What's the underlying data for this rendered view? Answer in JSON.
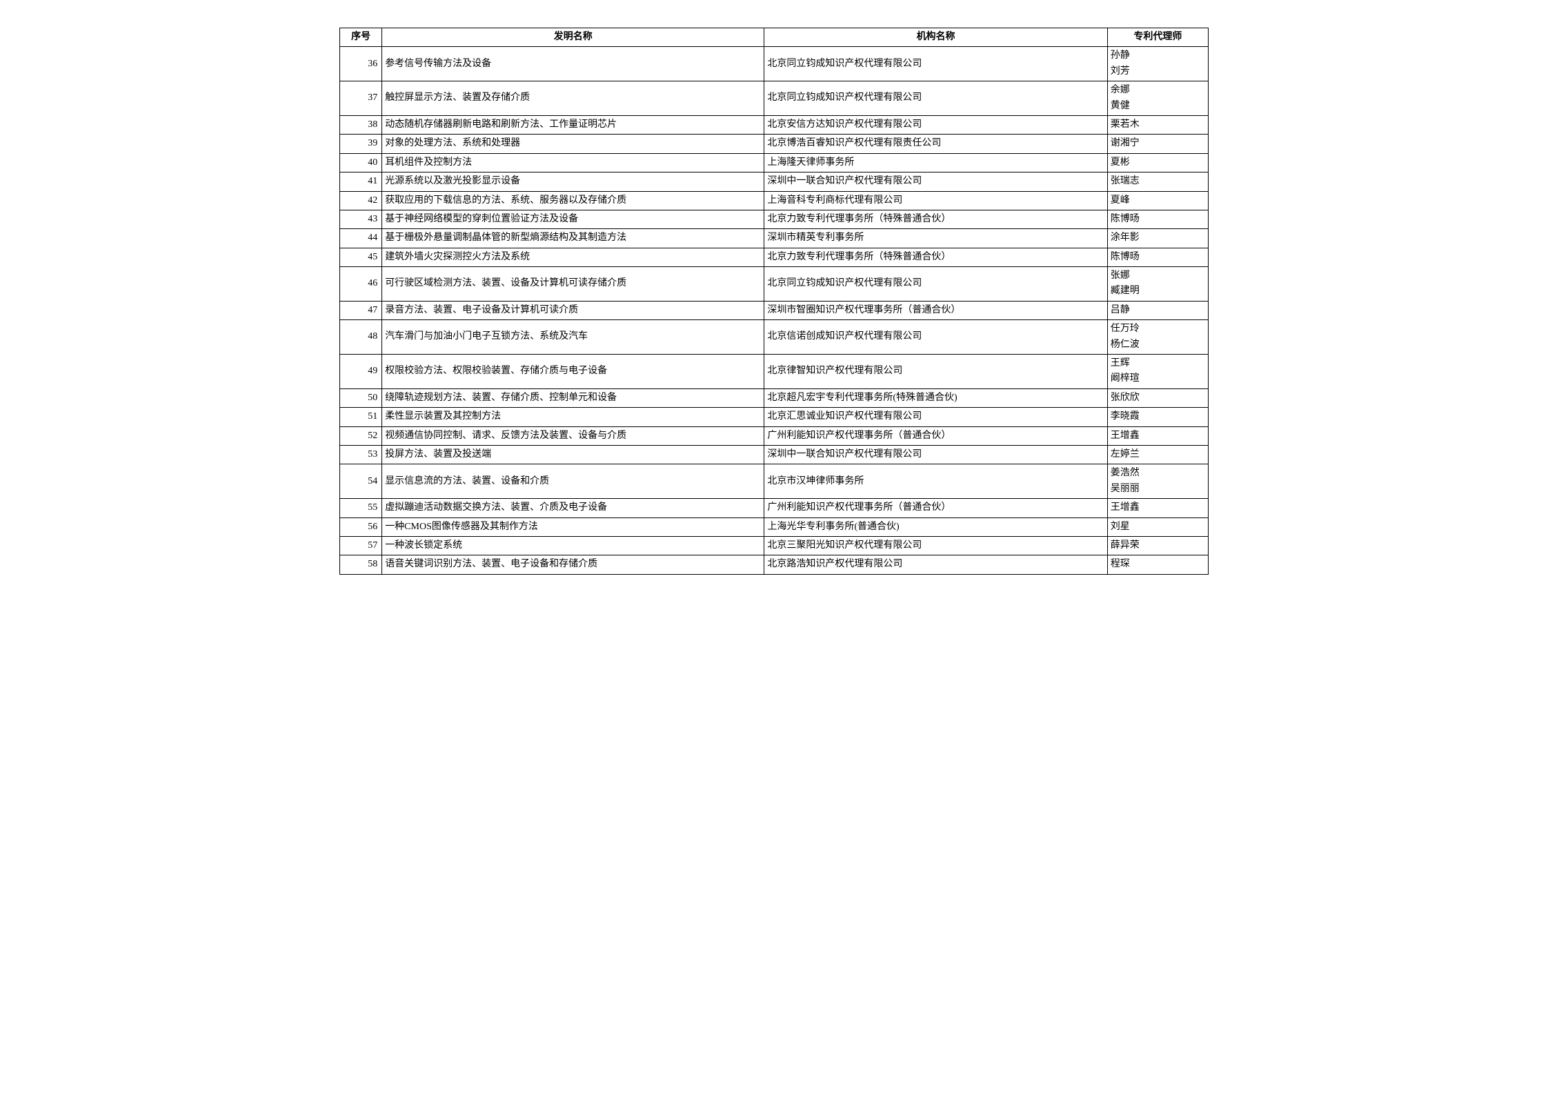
{
  "table": {
    "headers": {
      "seq": "序号",
      "name": "发明名称",
      "org": "机构名称",
      "agent": "专利代理师"
    },
    "rows": [
      {
        "seq": 36,
        "name": "参考信号传输方法及设备",
        "org": "北京同立钧成知识产权代理有限公司",
        "agents": [
          "孙静",
          "刘芳"
        ]
      },
      {
        "seq": 37,
        "name": "触控屏显示方法、装置及存储介质",
        "org": "北京同立钧成知识产权代理有限公司",
        "agents": [
          "余娜",
          "黄健"
        ]
      },
      {
        "seq": 38,
        "name": "动态随机存储器刷新电路和刷新方法、工作量证明芯片",
        "org": "北京安信方达知识产权代理有限公司",
        "agents": [
          "栗若木"
        ]
      },
      {
        "seq": 39,
        "name": "对象的处理方法、系统和处理器",
        "org": "北京博浩百睿知识产权代理有限责任公司",
        "agents": [
          "谢湘宁"
        ]
      },
      {
        "seq": 40,
        "name": "耳机组件及控制方法",
        "org": "上海隆天律师事务所",
        "agents": [
          "夏彬"
        ]
      },
      {
        "seq": 41,
        "name": "光源系统以及激光投影显示设备",
        "org": "深圳中一联合知识产权代理有限公司",
        "agents": [
          "张瑞志"
        ]
      },
      {
        "seq": 42,
        "name": "获取应用的下载信息的方法、系统、服务器以及存储介质",
        "org": "上海音科专利商标代理有限公司",
        "agents": [
          "夏峰"
        ]
      },
      {
        "seq": 43,
        "name": "基于神经网络模型的穿刺位置验证方法及设备",
        "org": "北京力致专利代理事务所（特殊普通合伙）",
        "agents": [
          "陈博旸"
        ]
      },
      {
        "seq": 44,
        "name": "基于栅极外悬量调制晶体管的新型熵源结构及其制造方法",
        "org": "深圳市精英专利事务所",
        "agents": [
          "涂年影"
        ]
      },
      {
        "seq": 45,
        "name": "建筑外墙火灾探测控火方法及系统",
        "org": "北京力致专利代理事务所（特殊普通合伙）",
        "agents": [
          "陈博旸"
        ]
      },
      {
        "seq": 46,
        "name": "可行驶区域检测方法、装置、设备及计算机可读存储介质",
        "org": "北京同立钧成知识产权代理有限公司",
        "agents": [
          "张娜",
          "臧建明"
        ]
      },
      {
        "seq": 47,
        "name": "录音方法、装置、电子设备及计算机可读介质",
        "org": "深圳市智圈知识产权代理事务所（普通合伙）",
        "agents": [
          "吕静"
        ]
      },
      {
        "seq": 48,
        "name": "汽车滑门与加油小门电子互锁方法、系统及汽车",
        "org": "北京信诺创成知识产权代理有限公司",
        "agents": [
          "任万玲",
          "杨仁波"
        ]
      },
      {
        "seq": 49,
        "name": "权限校验方法、权限校验装置、存储介质与电子设备",
        "org": "北京律智知识产权代理有限公司",
        "agents": [
          "王辉",
          "阚梓瑄"
        ]
      },
      {
        "seq": 50,
        "name": "绕障轨迹规划方法、装置、存储介质、控制单元和设备",
        "org": "北京超凡宏宇专利代理事务所(特殊普通合伙)",
        "agents": [
          "张欣欣"
        ]
      },
      {
        "seq": 51,
        "name": "柔性显示装置及其控制方法",
        "org": "北京汇思诚业知识产权代理有限公司",
        "agents": [
          "李晓霞"
        ]
      },
      {
        "seq": 52,
        "name": "视频通信协同控制、请求、反馈方法及装置、设备与介质",
        "org": "广州利能知识产权代理事务所（普通合伙）",
        "agents": [
          "王增鑫"
        ]
      },
      {
        "seq": 53,
        "name": "投屏方法、装置及投送端",
        "org": "深圳中一联合知识产权代理有限公司",
        "agents": [
          "左婷兰"
        ]
      },
      {
        "seq": 54,
        "name": "显示信息流的方法、装置、设备和介质",
        "org": "北京市汉坤律师事务所",
        "agents": [
          "姜浩然",
          "吴丽丽"
        ]
      },
      {
        "seq": 55,
        "name": "虚拟蹦迪活动数据交换方法、装置、介质及电子设备",
        "org": "广州利能知识产权代理事务所（普通合伙）",
        "agents": [
          "王增鑫"
        ]
      },
      {
        "seq": 56,
        "name": "一种CMOS图像传感器及其制作方法",
        "org": "上海光华专利事务所(普通合伙)",
        "agents": [
          "刘星"
        ]
      },
      {
        "seq": 57,
        "name": "一种波长锁定系统",
        "org": "北京三聚阳光知识产权代理有限公司",
        "agents": [
          "薛异荣"
        ]
      },
      {
        "seq": 58,
        "name": "语音关键词识别方法、装置、电子设备和存储介质",
        "org": "北京路浩知识产权代理有限公司",
        "agents": [
          "程琛"
        ]
      }
    ]
  }
}
